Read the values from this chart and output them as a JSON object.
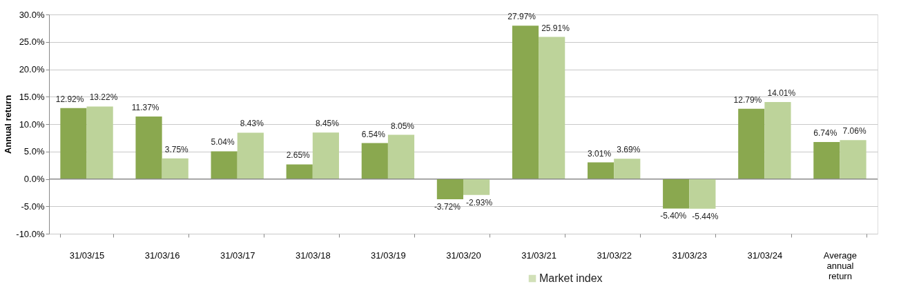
{
  "chart_data": {
    "type": "bar",
    "ylabel": "Annual return",
    "categories": [
      "31/03/15",
      "31/03/16",
      "31/03/17",
      "31/03/18",
      "31/03/19",
      "31/03/20",
      "31/03/21",
      "31/03/22",
      "31/03/23",
      "31/03/24",
      "Average annual return"
    ],
    "series": [
      {
        "color": "#8aa84f",
        "values": [
          12.92,
          11.37,
          5.04,
          2.65,
          6.54,
          -3.72,
          27.97,
          3.01,
          -5.4,
          12.79,
          6.74
        ],
        "value_labels": [
          "12.92%",
          "11.37%",
          "5.04%",
          "2.65%",
          "6.54%",
          "-3.72%",
          "27.97%",
          "3.01%",
          "-5.40%",
          "12.79%",
          "6.74%"
        ]
      },
      {
        "name": "Market index",
        "color": "#bdd39a",
        "values": [
          13.22,
          3.75,
          8.43,
          8.45,
          8.05,
          -2.93,
          25.91,
          3.69,
          -5.44,
          14.01,
          7.06
        ],
        "value_labels": [
          "13.22%",
          "3.75%",
          "8.43%",
          "8.45%",
          "8.05%",
          "-2.93%",
          "25.91%",
          "3.69%",
          "-5.44%",
          "14.01%",
          "7.06%"
        ]
      }
    ],
    "ylim": [
      -10,
      30
    ],
    "yticks": [
      {
        "value": -10,
        "label": "-10.0%"
      },
      {
        "value": -5,
        "label": "-5.0%"
      },
      {
        "value": 0,
        "label": "0.0%"
      },
      {
        "value": 5,
        "label": "5.0%"
      },
      {
        "value": 10,
        "label": "10.0%"
      },
      {
        "value": 15,
        "label": "15.0%"
      },
      {
        "value": 20,
        "label": "20.0%"
      },
      {
        "value": 25,
        "label": "25.0%"
      },
      {
        "value": 30,
        "label": "30.0%"
      }
    ],
    "grid": "y",
    "legend": "bottom"
  }
}
